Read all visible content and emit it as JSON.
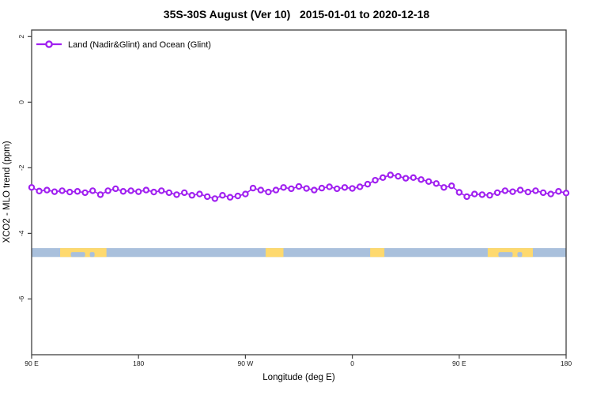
{
  "chart_data": {
    "type": "line",
    "title": "35S-30S August (Ver 10)   2015-01-01 to 2020-12-18",
    "xlabel": "Longitude (deg E)",
    "ylabel": "XCO2 - MLO trend (ppm)",
    "xlim": [
      90,
      540
    ],
    "ylim": [
      -7.7,
      2.2
    ],
    "grid": false,
    "legend_position": "top-left",
    "x_ticks": [
      {
        "v": 90,
        "label": "90 E"
      },
      {
        "v": 180,
        "label": "180"
      },
      {
        "v": 270,
        "label": "90 W"
      },
      {
        "v": 360,
        "label": "0"
      },
      {
        "v": 450,
        "label": "90 E"
      },
      {
        "v": 540,
        "label": "180"
      }
    ],
    "y_ticks": [
      {
        "v": 2,
        "label": "2"
      },
      {
        "v": 0,
        "label": "0"
      },
      {
        "v": -2,
        "label": "-2"
      },
      {
        "v": -4,
        "label": "-4"
      },
      {
        "v": -6,
        "label": "-6"
      }
    ],
    "series": [
      {
        "name": "Land (Nadir&Glint) and Ocean (Glint)",
        "color": "#A020F0",
        "marker": "open-circle",
        "x": [
          90,
          96.4,
          102.9,
          109.3,
          115.7,
          122.1,
          128.6,
          135,
          141.4,
          147.9,
          154.3,
          160.7,
          167.1,
          173.6,
          180,
          186.4,
          192.9,
          199.3,
          205.7,
          212.1,
          218.6,
          225,
          231.4,
          237.9,
          244.3,
          250.7,
          257.1,
          263.6,
          270,
          276.4,
          282.9,
          289.3,
          295.7,
          302.1,
          308.6,
          315,
          321.4,
          327.9,
          334.3,
          340.7,
          347.1,
          353.6,
          360,
          366.4,
          372.9,
          379.3,
          385.7,
          392.1,
          398.6,
          405,
          411.4,
          417.9,
          424.3,
          430.7,
          437.1,
          443.6,
          450,
          456.4,
          462.9,
          469.3,
          475.7,
          482.1,
          488.6,
          495,
          501.4,
          507.9,
          514.3,
          520.7,
          527.1,
          533.6,
          540
        ],
        "values": [
          -2.6,
          -2.71,
          -2.68,
          -2.73,
          -2.7,
          -2.74,
          -2.72,
          -2.76,
          -2.7,
          -2.82,
          -2.7,
          -2.64,
          -2.72,
          -2.7,
          -2.73,
          -2.68,
          -2.74,
          -2.7,
          -2.76,
          -2.82,
          -2.76,
          -2.84,
          -2.8,
          -2.88,
          -2.94,
          -2.84,
          -2.9,
          -2.86,
          -2.8,
          -2.62,
          -2.68,
          -2.74,
          -2.68,
          -2.6,
          -2.64,
          -2.57,
          -2.63,
          -2.68,
          -2.62,
          -2.58,
          -2.64,
          -2.6,
          -2.63,
          -2.58,
          -2.5,
          -2.38,
          -2.3,
          -2.22,
          -2.26,
          -2.32,
          -2.3,
          -2.36,
          -2.42,
          -2.48,
          -2.6,
          -2.55,
          -2.75,
          -2.88,
          -2.8,
          -2.82,
          -2.84,
          -2.76,
          -2.7,
          -2.73,
          -2.68,
          -2.74,
          -2.7,
          -2.76,
          -2.8,
          -2.72,
          -2.77
        ]
      }
    ],
    "map_strip": {
      "y_top": -4.45,
      "y_bottom": -4.72,
      "ocean_color": "#a9c0dc",
      "land_color": "#fed96e",
      "land_segments": [
        {
          "from": 114,
          "to": 153
        },
        {
          "from": 287,
          "to": 302
        },
        {
          "from": 375,
          "to": 387
        },
        {
          "from": 474,
          "to": 512
        }
      ],
      "ocean_notches": [
        {
          "from": 123,
          "to": 135
        },
        {
          "from": 139,
          "to": 143
        },
        {
          "from": 483,
          "to": 495
        },
        {
          "from": 499,
          "to": 503
        }
      ]
    },
    "colors": {
      "axis": "#404040",
      "text": "#000000",
      "background": "#ffffff"
    }
  }
}
